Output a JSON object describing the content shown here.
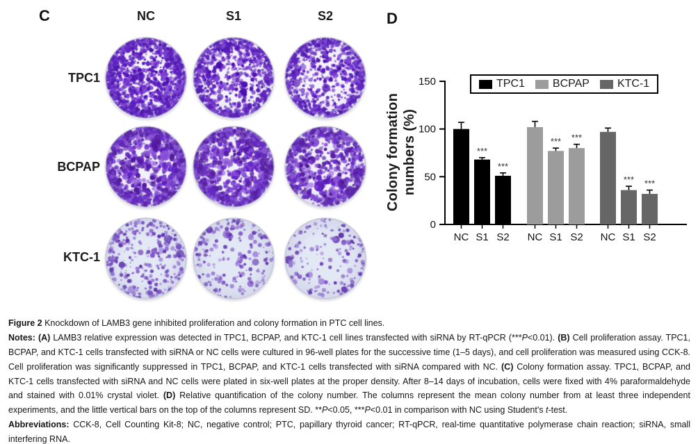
{
  "panel_c": {
    "label": "C",
    "column_headers": [
      "NC",
      "S1",
      "S2"
    ],
    "rows": [
      {
        "label": "TPC1",
        "bg": "#f5f3fc",
        "colors": [
          "#5a17c0",
          "#7e3fd6",
          "#4a0fae"
        ],
        "counts": [
          1500,
          1000,
          780
        ],
        "dot": [
          1.0,
          3.1
        ],
        "rim": 0.35,
        "hole": 0.15,
        "seeds": [
          11,
          12,
          13
        ]
      },
      {
        "label": "BCPAP",
        "bg": "#f2f1fb",
        "colors": [
          "#6222c6",
          "#8a51d8",
          "#51179f"
        ],
        "counts": [
          950,
          850,
          700
        ],
        "dot": [
          1.4,
          4.0
        ],
        "rim": 0.3,
        "hole": 0.3,
        "seeds": [
          21,
          22,
          23
        ]
      },
      {
        "label": "KTC-1",
        "bg": "#e3e8f5",
        "colors": [
          "#7748c5",
          "#9a7ad8",
          "#5d2fae"
        ],
        "counts": [
          300,
          205,
          165
        ],
        "dot": [
          0.8,
          3.2
        ],
        "rim": 0.22,
        "hole": 0.1,
        "seeds": [
          31,
          32,
          33
        ]
      }
    ]
  },
  "panel_d": {
    "label": "D",
    "chart_data": {
      "type": "bar",
      "title": "",
      "xlabel": "",
      "ylabel": "Colony formation\nnumbers (%)",
      "ylim": [
        0,
        150
      ],
      "yticks": [
        0,
        50,
        100,
        150
      ],
      "grid": false,
      "legend_position": "top",
      "group_labels": [
        "NC",
        "S1",
        "S2"
      ],
      "series": [
        {
          "name": "TPC1",
          "color": "#000000",
          "values": [
            100,
            68,
            51
          ],
          "errors": [
            7,
            2,
            3
          ],
          "sig": [
            "",
            "***",
            "***"
          ]
        },
        {
          "name": "BCPAP",
          "color": "#9c9c9c",
          "values": [
            102,
            77,
            80
          ],
          "errors": [
            6,
            3,
            4
          ],
          "sig": [
            "",
            "***",
            "***"
          ]
        },
        {
          "name": "KTC-1",
          "color": "#666666",
          "values": [
            97,
            36,
            32
          ],
          "errors": [
            4,
            4,
            4
          ],
          "sig": [
            "",
            "***",
            "***"
          ]
        }
      ]
    }
  },
  "caption": {
    "paragraphs": [
      [
        {
          "t": "Figure 2 ",
          "b": true
        },
        {
          "t": "Knockdown of LAMB3 gene inhibited proliferation and colony formation in PTC cell lines."
        }
      ],
      [
        {
          "t": "Notes: ",
          "b": true
        },
        {
          "t": "(A) ",
          "b": true
        },
        {
          "t": "LAMB3 relative expression was detected in TPC1, BCPAP, and KTC-1 cell lines transfected with siRNA by RT-qPCR (***"
        },
        {
          "t": "P",
          "i": true
        },
        {
          "t": "<0.01). "
        },
        {
          "t": "(B) ",
          "b": true
        },
        {
          "t": "Cell proliferation assay. TPC1, BCPAP, and KTC-1 cells transfected with siRNA or NC cells were cultured in 96-well plates for the successive time (1–5 days), and cell proliferation was measured using CCK-8. Cell proliferation was significantly suppressed in TPC1, BCPAP, and KTC-1 cells transfected with siRNA compared with NC. "
        },
        {
          "t": "(C) ",
          "b": true
        },
        {
          "t": "Colony formation assay. TPC1, BCPAP, and KTC-1 cells transfected with siRNA and NC cells were plated in six-well plates at the proper density. After 8–14 days of incubation, cells were fixed with 4% paraformaldehyde and stained with 0.01% crystal violet. "
        },
        {
          "t": "(D) ",
          "b": true
        },
        {
          "t": "Relative quantification of the colony number. The columns represent the mean colony number from at least three independent experiments, and the little vertical bars on the top of the columns represent SD. **"
        },
        {
          "t": "P",
          "i": true
        },
        {
          "t": "<0.05, ***"
        },
        {
          "t": "P",
          "i": true
        },
        {
          "t": "<0.01 in comparison with NC using Student's "
        },
        {
          "t": "t",
          "i": true
        },
        {
          "t": "-test."
        }
      ],
      [
        {
          "t": "Abbreviations: ",
          "b": true
        },
        {
          "t": "CCK-8, Cell Counting Kit-8; NC, negative control; PTC, papillary thyroid cancer; RT-qPCR, real-time quantitative polymerase chain reaction; siRNA, small interfering RNA."
        }
      ]
    ]
  }
}
